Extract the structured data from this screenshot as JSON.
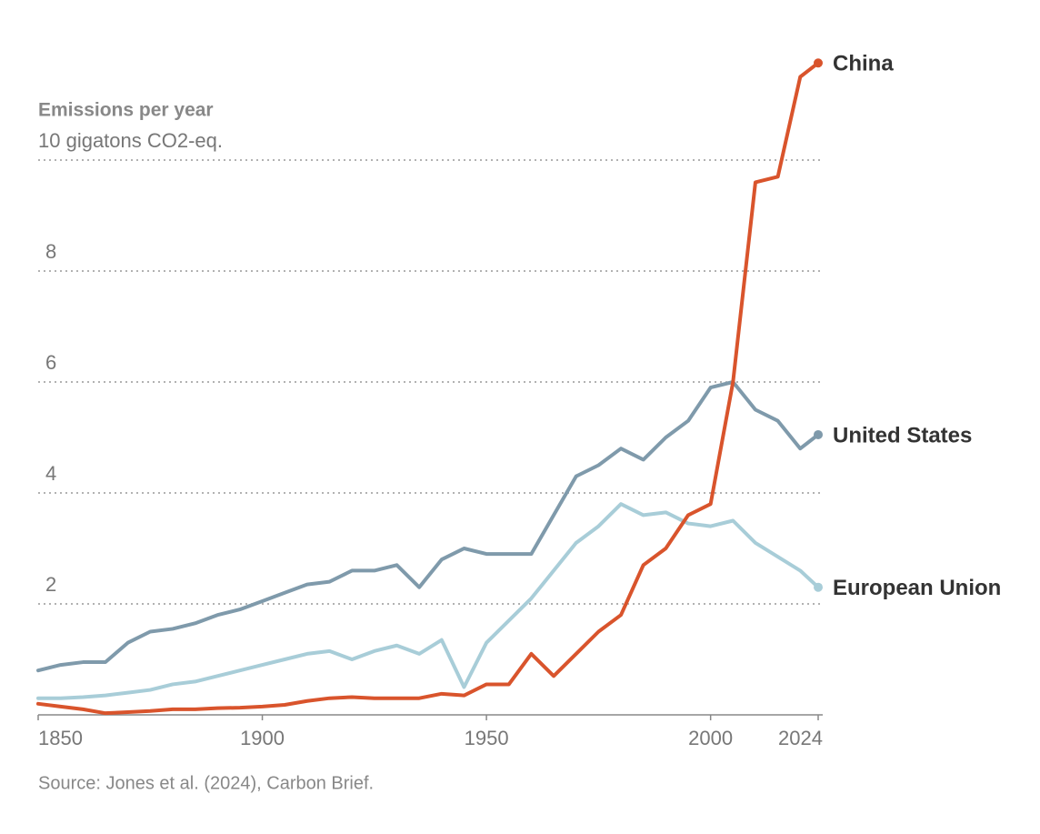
{
  "chart_data": {
    "type": "line",
    "y_axis_label": "Emissions per year",
    "source": "Source: Jones et al. (2024), Carbon Brief.",
    "x": [
      1850,
      1855,
      1860,
      1865,
      1870,
      1875,
      1880,
      1885,
      1890,
      1895,
      1900,
      1905,
      1910,
      1915,
      1920,
      1925,
      1930,
      1935,
      1940,
      1945,
      1950,
      1955,
      1960,
      1965,
      1970,
      1975,
      1980,
      1985,
      1990,
      1995,
      2000,
      2005,
      2010,
      2015,
      2020,
      2024
    ],
    "xlim": [
      1850,
      2024
    ],
    "xticks": [
      1850,
      1900,
      1950,
      2000,
      2024
    ],
    "ylim": [
      0,
      12
    ],
    "yticks": [
      2,
      4,
      6,
      8,
      {
        "value": 10,
        "label": "10 gigatons CO2-eq."
      }
    ],
    "grid": true,
    "series": [
      {
        "name": "United States",
        "color": "#7f9aab",
        "values": [
          0.8,
          0.9,
          0.95,
          0.95,
          1.3,
          1.5,
          1.55,
          1.65,
          1.8,
          1.9,
          2.05,
          2.2,
          2.35,
          2.4,
          2.6,
          2.6,
          2.7,
          2.3,
          2.8,
          3.0,
          2.9,
          2.9,
          2.9,
          3.6,
          4.3,
          4.5,
          4.8,
          4.6,
          5.0,
          5.3,
          5.9,
          6.0,
          5.5,
          5.3,
          4.8,
          5.05
        ]
      },
      {
        "name": "European Union",
        "color": "#a8cdd8",
        "values": [
          0.3,
          0.3,
          0.32,
          0.35,
          0.4,
          0.45,
          0.55,
          0.6,
          0.7,
          0.8,
          0.9,
          1.0,
          1.1,
          1.15,
          1.0,
          1.15,
          1.25,
          1.1,
          1.35,
          0.5,
          1.3,
          1.7,
          2.1,
          2.6,
          3.1,
          3.4,
          3.8,
          3.6,
          3.65,
          3.45,
          3.4,
          3.5,
          3.1,
          2.85,
          2.6,
          2.3
        ]
      },
      {
        "name": "China",
        "color": "#d9542c",
        "values": [
          0.2,
          0.15,
          0.1,
          0.03,
          0.05,
          0.07,
          0.1,
          0.1,
          0.12,
          0.13,
          0.15,
          0.18,
          0.25,
          0.3,
          0.32,
          0.3,
          0.3,
          0.3,
          0.38,
          0.35,
          0.55,
          0.55,
          1.1,
          0.7,
          1.1,
          1.5,
          1.8,
          2.7,
          3.0,
          3.6,
          3.8,
          6.0,
          9.6,
          9.7,
          11.5,
          11.75
        ]
      }
    ]
  }
}
